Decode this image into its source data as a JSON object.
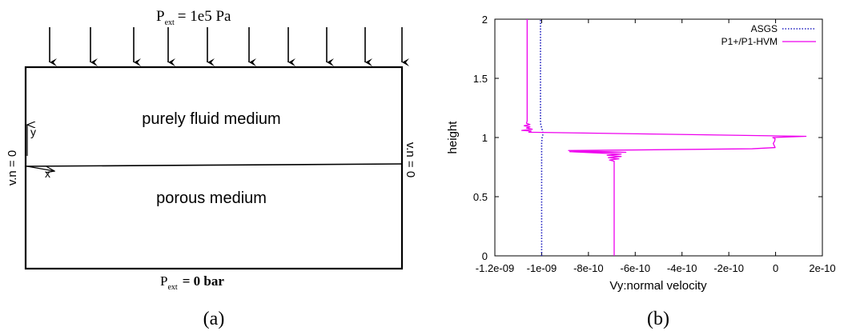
{
  "panel_a": {
    "top_bc": {
      "p": "P",
      "sub": "ext",
      "rest": "=  1e5  Pa"
    },
    "bottom_bc": {
      "p": "P",
      "sub": "ext",
      "rest": "=  0  bar"
    },
    "fluid_label": "purely fluid medium",
    "porous_label": "porous medium",
    "left_bc": "v.n = 0",
    "right_bc": "v.n = 0",
    "axis_y": "y",
    "axis_x": "x",
    "caption": "(a)"
  },
  "panel_b": {
    "caption": "(b)"
  },
  "chart_data": {
    "type": "line",
    "xlabel": "Vy:normal velocity",
    "ylabel": "height",
    "xlim": [
      -1.2e-09,
      2e-10
    ],
    "ylim": [
      0,
      2
    ],
    "x_ticks": [
      -1.2e-09,
      -1e-09,
      -8e-10,
      -6e-10,
      -4e-10,
      -2e-10,
      0,
      2e-10
    ],
    "x_tick_labels": [
      "-1.2e-09",
      "-1e-09",
      "-8e-10",
      "-6e-10",
      "-4e-10",
      "-2e-10",
      "0",
      "2e-10"
    ],
    "y_ticks": [
      0,
      0.5,
      1,
      1.5,
      2
    ],
    "y_tick_labels": [
      "0",
      "0.5",
      "1",
      "1.5",
      "2"
    ],
    "grid": false,
    "legend_position": "top-right",
    "series": [
      {
        "name": "ASGS",
        "style": "dotted",
        "color": "#2020c0",
        "points": [
          [
            -1e-09,
            0
          ],
          [
            -1e-09,
            0.95
          ],
          [
            -9.98e-10,
            1.0
          ],
          [
            -9.94e-10,
            1.03
          ],
          [
            -9.97e-10,
            1.06
          ],
          [
            -1.005e-09,
            1.12
          ],
          [
            -1.005e-09,
            2
          ]
        ]
      },
      {
        "name": "P1+/P1-HVM",
        "style": "solid",
        "color": "#ee00ee",
        "points": [
          [
            -6.9e-10,
            0
          ],
          [
            -6.9e-10,
            0.8
          ],
          [
            -7.1e-10,
            0.81
          ],
          [
            -6.7e-10,
            0.82
          ],
          [
            -7.15e-10,
            0.83
          ],
          [
            -6.6e-10,
            0.84
          ],
          [
            -7.2e-10,
            0.85
          ],
          [
            -6.6e-10,
            0.86
          ],
          [
            -8.8e-10,
            0.88
          ],
          [
            -6.4e-10,
            0.875
          ],
          [
            -8.85e-10,
            0.89
          ],
          [
            -6e-10,
            0.895
          ],
          [
            -1e-10,
            0.905
          ],
          [
            -2e-12,
            0.915
          ],
          [
            -1e-11,
            0.95
          ],
          [
            -4e-12,
            0.97
          ],
          [
            -2e-12,
            0.99
          ],
          [
            -1.2e-11,
            1.0
          ],
          [
            1.3e-10,
            1.01
          ],
          [
            -1.055e-09,
            1.045
          ],
          [
            -1.045e-09,
            1.055
          ],
          [
            -1.085e-09,
            1.06
          ],
          [
            -1.04e-09,
            1.07
          ],
          [
            -1.065e-09,
            1.08
          ],
          [
            -1.05e-09,
            1.09
          ],
          [
            -1.075e-09,
            1.1
          ],
          [
            -1.05e-09,
            1.11
          ],
          [
            -1.065e-09,
            1.12
          ],
          [
            -1.062e-09,
            1.14
          ],
          [
            -1.062e-09,
            2
          ]
        ]
      }
    ]
  }
}
